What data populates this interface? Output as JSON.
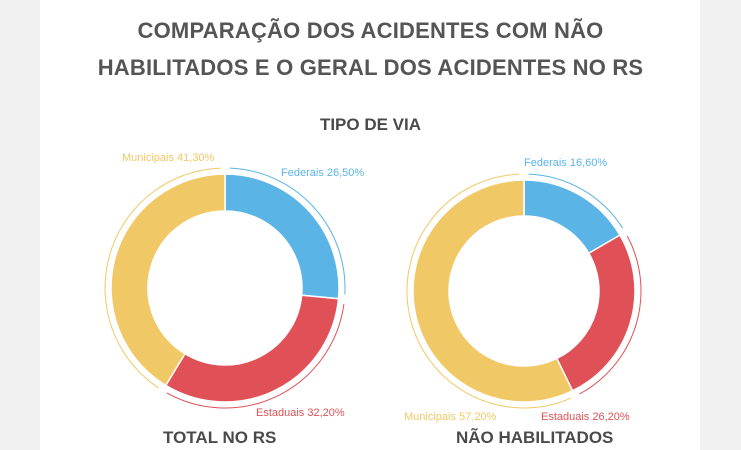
{
  "header": {
    "title_line1": "COMPARAÇÃO DOS ACIDENTES COM NÃO",
    "title_line2": "HABILITADOS E O GERAL DOS ACIDENTES NO RS",
    "subtitle": "TIPO DE VIA"
  },
  "colors": {
    "federais": "#5ab4e5",
    "estaduais": "#df5156",
    "municipais": "#f0c866"
  },
  "chart_data": [
    {
      "type": "pie",
      "variant": "donut",
      "title": "TOTAL NO RS",
      "slices": [
        {
          "name": "Federais",
          "value": 26.5,
          "label": "Federais 26,50%",
          "color": "#5ab4e5"
        },
        {
          "name": "Estaduais",
          "value": 32.2,
          "label": "Estaduais 32,20%",
          "color": "#df5156"
        },
        {
          "name": "Municipais",
          "value": 41.3,
          "label": "Municipais 41,30%",
          "color": "#f0c866"
        }
      ]
    },
    {
      "type": "pie",
      "variant": "donut",
      "title": "NÃO HABILITADOS",
      "slices": [
        {
          "name": "Federais",
          "value": 16.6,
          "label": "Federais 16,60%",
          "color": "#5ab4e5"
        },
        {
          "name": "Estaduais",
          "value": 26.2,
          "label": "Estaduais 26,20%",
          "color": "#df5156"
        },
        {
          "name": "Municipais",
          "value": 57.2,
          "label": "Municipais 57,20%",
          "color": "#f0c866"
        }
      ]
    }
  ]
}
